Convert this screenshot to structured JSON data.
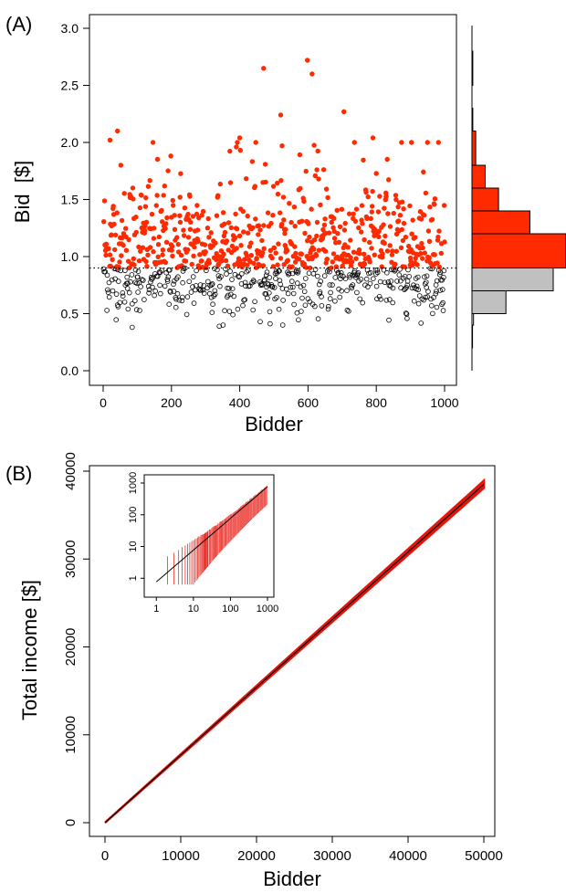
{
  "colors": {
    "accepted": "#ff2a00",
    "rejected_stroke": "#000000",
    "hist_rejected": "#c0c0c0",
    "line": "#000000",
    "band": "#e8140a"
  },
  "panels": {
    "a_label": "(A)",
    "b_label": "(B)"
  },
  "chart_data": [
    {
      "id": "A",
      "type": "scatter",
      "title": "",
      "xlabel": "Bidder",
      "ylabel": "Bid  [$]",
      "xlim": [
        0,
        1000
      ],
      "ylim": [
        0,
        3
      ],
      "x_ticks": [
        "0",
        "200",
        "400",
        "600",
        "800",
        "1000"
      ],
      "y_ticks": [
        "0.0",
        "0.5",
        "1.0",
        "1.5",
        "2.0",
        "2.5",
        "3.0"
      ],
      "threshold": 0.9,
      "threshold_style": "dotted",
      "series": [
        {
          "name": "",
          "marker": "filled-red",
          "description_range": [
            0.9,
            2.72
          ]
        },
        {
          "name": "",
          "marker": "open-black",
          "description_range": [
            0.38,
            0.9
          ]
        }
      ],
      "notable_points": [
        {
          "x": 42,
          "y": 2.1
        },
        {
          "x": 20,
          "y": 2.02
        },
        {
          "x": 470,
          "y": 2.65
        },
        {
          "x": 598,
          "y": 2.72
        },
        {
          "x": 612,
          "y": 2.6
        },
        {
          "x": 705,
          "y": 2.27
        },
        {
          "x": 520,
          "y": 2.24
        },
        {
          "x": 400,
          "y": 2.04
        },
        {
          "x": 790,
          "y": 2.04
        },
        {
          "x": 950,
          "y": 2.0
        },
        {
          "x": 85,
          "y": 0.38
        },
        {
          "x": 340,
          "y": 0.39
        },
        {
          "x": 460,
          "y": 0.43
        }
      ],
      "marginal_histogram": {
        "orientation": "horizontal",
        "bins": [
          {
            "y0": 0.0,
            "y1": 0.2,
            "count": 0
          },
          {
            "y0": 0.2,
            "y1": 0.4,
            "count": 2
          },
          {
            "y0": 0.4,
            "y1": 0.5,
            "count": 6
          },
          {
            "y0": 0.5,
            "y1": 0.7,
            "count": 128,
            "group": "rejected"
          },
          {
            "y0": 0.7,
            "y1": 0.9,
            "count": 306,
            "group": "rejected"
          },
          {
            "y0": 0.9,
            "y1": 1.2,
            "count": 354,
            "group": "accepted"
          },
          {
            "y0": 1.2,
            "y1": 1.4,
            "count": 218,
            "group": "accepted"
          },
          {
            "y0": 1.4,
            "y1": 1.6,
            "count": 100,
            "group": "accepted"
          },
          {
            "y0": 1.6,
            "y1": 1.8,
            "count": 50,
            "group": "accepted"
          },
          {
            "y0": 1.8,
            "y1": 2.1,
            "count": 14,
            "group": "accepted"
          },
          {
            "y0": 2.1,
            "y1": 2.3,
            "count": 3,
            "group": "accepted"
          },
          {
            "y0": 2.3,
            "y1": 2.5,
            "count": 0
          },
          {
            "y0": 2.5,
            "y1": 2.8,
            "count": 3,
            "group": "accepted"
          }
        ]
      }
    },
    {
      "id": "B",
      "type": "line",
      "title": "",
      "xlabel": "Bidder",
      "ylabel": "Total income [$]",
      "xlim": [
        0,
        50000
      ],
      "ylim": [
        0,
        40000
      ],
      "x_ticks": [
        "0",
        "10000",
        "20000",
        "30000",
        "40000",
        "50000"
      ],
      "y_ticks": [
        "0",
        "10000",
        "20000",
        "30000",
        "40000"
      ],
      "series": [
        {
          "name": "",
          "x": [
            0,
            50000
          ],
          "y": [
            0,
            38500
          ],
          "color": "line"
        },
        {
          "name": "",
          "x": [
            0,
            50000
          ],
          "y_low": [
            0,
            38100
          ],
          "y_high": [
            0,
            38900
          ],
          "color": "band"
        }
      ],
      "inset": {
        "type": "line",
        "scale": "log-log",
        "xlim": [
          0.7,
          1000
        ],
        "ylim": [
          0.6,
          1000
        ],
        "x_ticks": [
          "1",
          "10",
          "100",
          "1000"
        ],
        "y_ticks": [
          "1",
          "10",
          "100",
          "1000"
        ],
        "series": [
          {
            "name": "",
            "x": [
              1,
              1000
            ],
            "y": [
              0.77,
              770
            ]
          }
        ]
      }
    }
  ]
}
